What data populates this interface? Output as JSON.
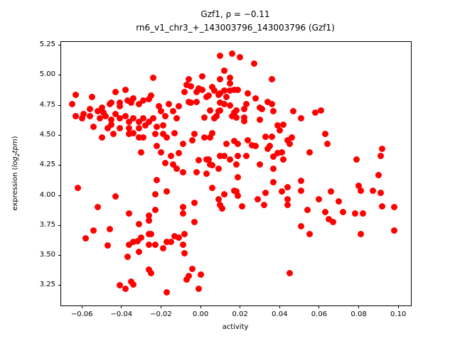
{
  "figure": {
    "title_line1": "Gzf1, ρ = −0.11",
    "title_line2": "rn6_v1_chr3_+_143003796_143003796 (Gzf1)"
  },
  "chart_data": {
    "type": "scatter",
    "title": "Gzf1, ρ = −0.11",
    "subtitle": "rn6_v1_chr3_+_143003796_143003796 (Gzf1)",
    "gene": "Gzf1",
    "rho": -0.11,
    "xlabel": "activity",
    "ylabel": "expression (log₂tpm)",
    "ylabel_parts": {
      "pre": "expression (",
      "log": "log",
      "sub": "2",
      "tail": "tpm",
      "post": ")"
    },
    "marker_color": "#ff0000",
    "marker_diameter_px": 9,
    "grid": false,
    "legend": null,
    "xlim": [
      -0.0705,
      0.1064
    ],
    "ylim": [
      3.083,
      5.278
    ],
    "xticks": [
      -0.06,
      -0.04,
      -0.02,
      0.0,
      0.02,
      0.04,
      0.06,
      0.08,
      0.1
    ],
    "yticks": [
      3.25,
      3.5,
      3.75,
      4.0,
      4.25,
      4.5,
      4.75,
      5.0,
      5.25
    ],
    "points": [
      [
        -0.024,
        4.98
      ],
      [
        -0.063,
        4.84
      ],
      [
        -0.055,
        4.82
      ],
      [
        -0.043,
        4.86
      ],
      [
        -0.038,
        4.88
      ],
      [
        -0.065,
        4.76
      ],
      [
        -0.05,
        4.73
      ],
      [
        -0.056,
        4.72
      ],
      [
        -0.052,
        4.7
      ],
      [
        -0.046,
        4.76
      ],
      [
        -0.045,
        4.77
      ],
      [
        -0.041,
        4.77
      ],
      [
        -0.041,
        4.74
      ],
      [
        -0.037,
        4.79
      ],
      [
        -0.035,
        4.77
      ],
      [
        -0.034,
        4.81
      ],
      [
        -0.031,
        4.76
      ],
      [
        -0.029,
        4.79
      ],
      [
        -0.026,
        4.8
      ],
      [
        -0.025,
        4.83
      ],
      [
        -0.063,
        4.66
      ],
      [
        -0.06,
        4.64
      ],
      [
        -0.056,
        4.66
      ],
      [
        -0.051,
        4.64
      ],
      [
        -0.048,
        4.66
      ],
      [
        -0.045,
        4.63
      ],
      [
        -0.043,
        4.68
      ],
      [
        -0.041,
        4.64
      ],
      [
        -0.038,
        4.66
      ],
      [
        -0.036,
        4.61
      ],
      [
        -0.034,
        4.64
      ],
      [
        -0.031,
        4.61
      ],
      [
        -0.029,
        4.64
      ],
      [
        -0.026,
        4.61
      ],
      [
        -0.024,
        4.64
      ],
      [
        -0.021,
        4.74
      ],
      [
        -0.02,
        4.7
      ],
      [
        -0.018,
        4.66
      ],
      [
        -0.016,
        4.76
      ],
      [
        -0.014,
        4.7
      ],
      [
        -0.012,
        4.64
      ],
      [
        -0.011,
        4.74
      ],
      [
        -0.008,
        4.86
      ],
      [
        -0.007,
        4.92
      ],
      [
        -0.006,
        4.78
      ],
      [
        -0.054,
        4.57
      ],
      [
        -0.047,
        4.56
      ],
      [
        -0.041,
        4.56
      ],
      [
        -0.036,
        4.56
      ],
      [
        -0.031,
        4.56
      ],
      [
        -0.045,
        4.59
      ],
      [
        -0.028,
        4.58
      ],
      [
        -0.022,
        4.57
      ],
      [
        -0.059,
        4.68
      ],
      [
        -0.049,
        4.69
      ],
      [
        -0.019,
        4.58
      ],
      [
        0.01,
        5.16
      ],
      [
        0.016,
        5.18
      ],
      [
        0.02,
        5.15
      ],
      [
        0.027,
        5.1
      ],
      [
        0.012,
        5.04
      ],
      [
        0.001,
        4.99
      ],
      [
        0.01,
        4.97
      ],
      [
        0.015,
        4.98
      ],
      [
        0.015,
        4.93
      ],
      [
        0.036,
        4.97
      ],
      [
        -0.006,
        4.97
      ],
      [
        -0.005,
        4.91
      ],
      [
        -0.001,
        4.89
      ],
      [
        0.001,
        4.88
      ],
      [
        -0.002,
        4.86
      ],
      [
        0.006,
        4.9
      ],
      [
        0.007,
        4.87
      ],
      [
        0.009,
        4.84
      ],
      [
        0.01,
        4.85
      ],
      [
        0.013,
        4.82
      ],
      [
        0.015,
        4.87
      ],
      [
        0.017,
        4.88
      ],
      [
        0.019,
        4.88
      ],
      [
        0.012,
        4.87
      ],
      [
        0.003,
        4.82
      ],
      [
        0.004,
        4.83
      ],
      [
        -0.005,
        4.77
      ],
      [
        -0.002,
        4.78
      ],
      [
        0.024,
        4.85
      ],
      [
        0.028,
        4.81
      ],
      [
        0.01,
        4.77
      ],
      [
        0.012,
        4.76
      ],
      [
        0.015,
        4.75
      ],
      [
        0.023,
        4.76
      ],
      [
        0.034,
        4.78
      ],
      [
        0.036,
        4.76
      ],
      [
        0.031,
        4.72
      ],
      [
        0.03,
        4.73
      ],
      [
        0.037,
        4.7
      ],
      [
        0.005,
        4.71
      ],
      [
        0.009,
        4.7
      ],
      [
        0.01,
        4.71
      ],
      [
        0.017,
        4.69
      ],
      [
        0.018,
        4.71
      ],
      [
        0.022,
        4.72
      ],
      [
        0.002,
        4.65
      ],
      [
        0.007,
        4.64
      ],
      [
        0.008,
        4.66
      ],
      [
        0.016,
        4.66
      ],
      [
        0.018,
        4.65
      ],
      [
        0.022,
        4.65
      ],
      [
        0.022,
        4.62
      ],
      [
        0.03,
        4.63
      ],
      [
        0.047,
        4.7
      ],
      [
        0.051,
        4.64
      ],
      [
        0.058,
        4.69
      ],
      [
        0.039,
        4.58
      ],
      [
        0.042,
        4.59
      ],
      [
        0.061,
        4.71
      ],
      [
        -0.05,
        4.48
      ],
      [
        -0.044,
        4.51
      ],
      [
        -0.036,
        4.51
      ],
      [
        -0.034,
        4.52
      ],
      [
        -0.031,
        4.48
      ],
      [
        -0.029,
        4.48
      ],
      [
        -0.023,
        4.51
      ],
      [
        -0.019,
        4.51
      ],
      [
        -0.017,
        4.48
      ],
      [
        -0.013,
        4.52
      ],
      [
        -0.03,
        4.36
      ],
      [
        -0.022,
        4.41
      ],
      [
        -0.02,
        4.36
      ],
      [
        -0.018,
        4.27
      ],
      [
        -0.015,
        4.33
      ],
      [
        -0.014,
        4.26
      ],
      [
        -0.011,
        4.35
      ],
      [
        -0.009,
        4.43
      ],
      [
        -0.012,
        4.22
      ],
      [
        -0.009,
        4.19
      ],
      [
        -0.022,
        4.13
      ],
      [
        -0.062,
        4.06
      ],
      [
        -0.043,
        3.99
      ],
      [
        -0.023,
        4.01
      ],
      [
        -0.017,
        4.03
      ],
      [
        -0.052,
        3.9
      ],
      [
        -0.036,
        3.85
      ],
      [
        -0.023,
        3.88
      ],
      [
        -0.009,
        3.9
      ],
      [
        -0.009,
        3.85
      ],
      [
        -0.026,
        3.83
      ],
      [
        -0.003,
        4.51
      ],
      [
        0.002,
        4.48
      ],
      [
        0.005,
        4.48
      ],
      [
        0.006,
        4.52
      ],
      [
        -0.004,
        4.46
      ],
      [
        0.013,
        4.43
      ],
      [
        0.017,
        4.45
      ],
      [
        0.019,
        4.43
      ],
      [
        0.024,
        4.46
      ],
      [
        0.026,
        4.42
      ],
      [
        0.028,
        4.41
      ],
      [
        0.033,
        4.49
      ],
      [
        0.036,
        4.49
      ],
      [
        0.04,
        4.54
      ],
      [
        0.034,
        4.39
      ],
      [
        0.035,
        4.41
      ],
      [
        0.044,
        4.46
      ],
      [
        0.046,
        4.48
      ],
      [
        0.045,
        4.43
      ],
      [
        0.055,
        4.36
      ],
      [
        0.01,
        4.33
      ],
      [
        0.012,
        4.33
      ],
      [
        0.019,
        4.33
      ],
      [
        0.023,
        4.33
      ],
      [
        0.015,
        4.3
      ],
      [
        0.018,
        4.26
      ],
      [
        -0.001,
        4.29
      ],
      [
        0.003,
        4.3
      ],
      [
        0.004,
        4.3
      ],
      [
        0.005,
        4.26
      ],
      [
        0.006,
        4.25
      ],
      [
        0.009,
        4.22
      ],
      [
        0.03,
        4.26
      ],
      [
        0.037,
        4.32
      ],
      [
        0.039,
        4.35
      ],
      [
        0.041,
        4.36
      ],
      [
        0.042,
        4.3
      ],
      [
        -0.002,
        4.19
      ],
      [
        0.003,
        4.18
      ],
      [
        0.037,
        4.22
      ],
      [
        0.019,
        4.15
      ],
      [
        0.037,
        4.11
      ],
      [
        0.006,
        4.06
      ],
      [
        0.012,
        4.01
      ],
      [
        0.017,
        4.04
      ],
      [
        0.018,
        4.03
      ],
      [
        0.019,
        4.0
      ],
      [
        0.033,
        4.02
      ],
      [
        0.041,
        4.03
      ],
      [
        0.044,
        4.07
      ],
      [
        0.051,
        4.12
      ],
      [
        0.051,
        4.04
      ],
      [
        0.009,
        3.97
      ],
      [
        0.01,
        3.92
      ],
      [
        0.011,
        3.89
      ],
      [
        0.029,
        3.97
      ],
      [
        0.032,
        3.92
      ],
      [
        0.044,
        3.97
      ],
      [
        0.044,
        3.92
      ],
      [
        0.021,
        3.91
      ],
      [
        0.054,
        3.88
      ],
      [
        -0.003,
        3.94
      ],
      [
        0.063,
        4.51
      ],
      [
        0.064,
        4.43
      ],
      [
        0.092,
        4.39
      ],
      [
        0.091,
        4.33
      ],
      [
        0.079,
        4.3
      ],
      [
        0.09,
        4.17
      ],
      [
        0.08,
        4.08
      ],
      [
        0.081,
        4.04
      ],
      [
        0.087,
        4.04
      ],
      [
        0.091,
        4.02
      ],
      [
        0.066,
        4.03
      ],
      [
        0.06,
        3.97
      ],
      [
        0.07,
        3.95
      ],
      [
        0.092,
        3.91
      ],
      [
        0.098,
        3.9
      ],
      [
        0.063,
        3.86
      ],
      [
        0.072,
        3.86
      ],
      [
        0.078,
        3.85
      ],
      [
        0.082,
        3.85
      ],
      [
        -0.058,
        3.64
      ],
      [
        -0.054,
        3.71
      ],
      [
        -0.046,
        3.72
      ],
      [
        -0.031,
        3.76
      ],
      [
        -0.026,
        3.79
      ],
      [
        -0.03,
        3.65
      ],
      [
        -0.026,
        3.68
      ],
      [
        -0.025,
        3.68
      ],
      [
        -0.047,
        3.58
      ],
      [
        -0.036,
        3.59
      ],
      [
        -0.034,
        3.61
      ],
      [
        -0.032,
        3.62
      ],
      [
        -0.026,
        3.59
      ],
      [
        -0.023,
        3.59
      ],
      [
        -0.019,
        3.56
      ],
      [
        -0.017,
        3.61
      ],
      [
        -0.015,
        3.61
      ],
      [
        -0.013,
        3.66
      ],
      [
        -0.011,
        3.65
      ],
      [
        -0.008,
        3.68
      ],
      [
        -0.009,
        3.59
      ],
      [
        -0.008,
        3.52
      ],
      [
        -0.031,
        3.53
      ],
      [
        -0.037,
        3.49
      ],
      [
        -0.041,
        3.25
      ],
      [
        -0.038,
        3.22
      ],
      [
        -0.035,
        3.28
      ],
      [
        -0.034,
        3.26
      ],
      [
        -0.026,
        3.38
      ],
      [
        -0.025,
        3.35
      ],
      [
        -0.017,
        3.19
      ],
      [
        -0.007,
        3.3
      ],
      [
        -0.004,
        3.39
      ],
      [
        0.0,
        3.34
      ],
      [
        -0.006,
        3.33
      ],
      [
        -0.001,
        3.22
      ],
      [
        -0.003,
        3.78
      ],
      [
        0.051,
        3.74
      ],
      [
        0.055,
        3.68
      ],
      [
        0.045,
        3.35
      ],
      [
        0.065,
        3.8
      ],
      [
        0.067,
        3.78
      ],
      [
        0.081,
        3.68
      ],
      [
        0.098,
        3.71
      ]
    ]
  }
}
